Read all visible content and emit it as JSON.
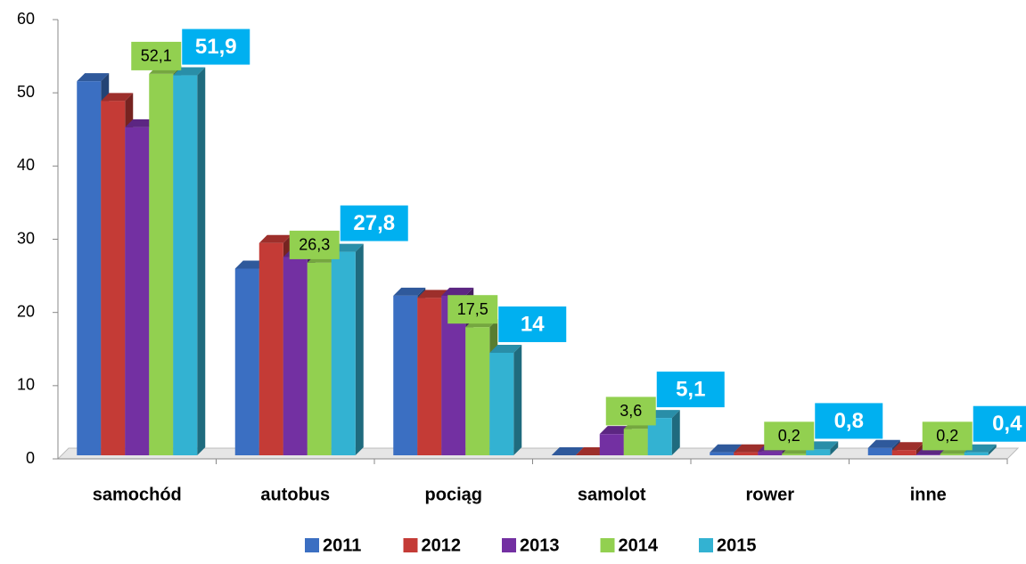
{
  "chart_data": {
    "type": "bar3d",
    "categories": [
      "samochód",
      "autobus",
      "pociąg",
      "samolot",
      "rower",
      "inne"
    ],
    "series": [
      {
        "name": "2011",
        "color": "#3b6fc2",
        "values": [
          51.1,
          25.5,
          21.8,
          0,
          0.4,
          1.0
        ]
      },
      {
        "name": "2012",
        "color": "#c43b36",
        "values": [
          48.4,
          29.0,
          21.5,
          0,
          0.4,
          0.7
        ]
      },
      {
        "name": "2013",
        "color": "#7330a2",
        "values": [
          44.8,
          27.1,
          21.8,
          2.9,
          0.5,
          0.1
        ]
      },
      {
        "name": "2014",
        "color": "#92d050",
        "values": [
          52.1,
          26.3,
          17.5,
          3.6,
          0.2,
          0.2
        ],
        "value_labels": [
          "52,1",
          "26,3",
          "17,5",
          "3,6",
          "0,2",
          "0,2"
        ]
      },
      {
        "name": "2015",
        "color": "#33b2d2",
        "values": [
          51.9,
          27.8,
          14,
          5.1,
          0.8,
          0.4
        ],
        "value_labels": [
          "51,9",
          "27,8",
          "14",
          "5,1",
          "0,8",
          "0,4"
        ]
      }
    ],
    "ylim": [
      0,
      60
    ],
    "yticks": [
      0,
      10,
      20,
      30,
      40,
      50,
      60
    ]
  }
}
